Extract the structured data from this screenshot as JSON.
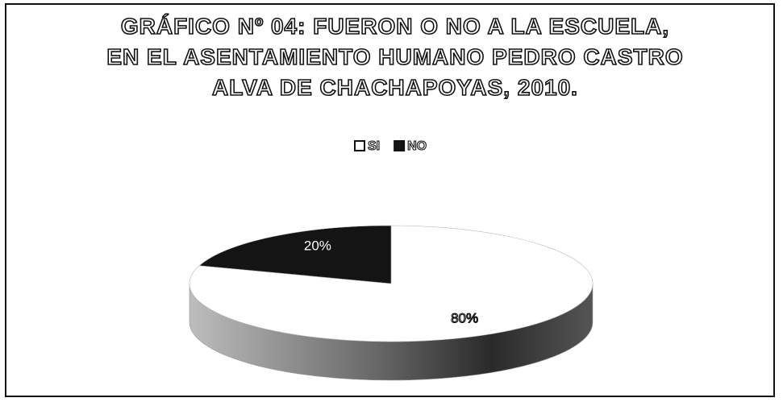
{
  "chart_data": {
    "type": "pie",
    "title": "GRÁFICO Nº 04: FUERON O NO A LA ESCUELA, EN EL ASENTAMIENTO HUMANO PEDRO CASTRO ALVA DE CHACHAPOYAS, 2010.",
    "categories": [
      "SI",
      "NO"
    ],
    "values": [
      80,
      20
    ],
    "value_labels": [
      "80%",
      "20%"
    ],
    "colors": [
      "#ffffff",
      "#141414"
    ],
    "legend": "top"
  }
}
